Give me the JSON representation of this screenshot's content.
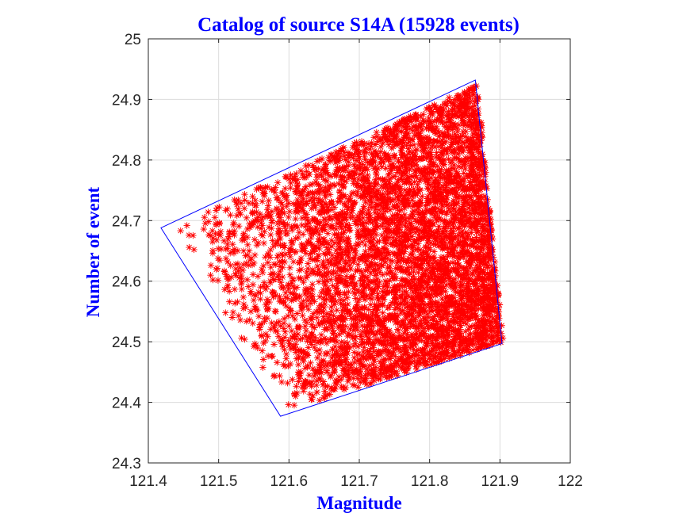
{
  "chart_data": {
    "type": "scatter",
    "title": "Catalog of source S14A (15928 events)",
    "xlabel": "Magnitude",
    "ylabel": "Number of event",
    "xlim": [
      121.4,
      122.0
    ],
    "ylim": [
      24.3,
      25.0
    ],
    "x_ticks": [
      "121.4",
      "121.5",
      "121.6",
      "121.7",
      "121.8",
      "121.9",
      "122"
    ],
    "y_ticks": [
      "24.3",
      "24.4",
      "24.5",
      "24.6",
      "24.7",
      "24.8",
      "24.9",
      "25"
    ],
    "grid": true,
    "marker": "asterisk",
    "marker_color": "#ff0000",
    "event_count": 15928,
    "source_boundary": {
      "color": "#0000ff",
      "x": [
        121.418,
        121.588,
        121.903,
        121.865,
        121.418
      ],
      "y": [
        24.688,
        24.377,
        24.497,
        24.932,
        24.688
      ]
    },
    "region_vertices": {
      "x": [
        121.43,
        121.595,
        121.905,
        121.868
      ],
      "y": [
        24.685,
        24.385,
        24.5,
        24.925
      ]
    }
  },
  "colors": {
    "title": "#0000ff",
    "axis_labels": "#0000ff",
    "points": "#ff0000",
    "boundary": "#0000ff",
    "grid": "#dcdcdc",
    "axes": "#262626"
  }
}
